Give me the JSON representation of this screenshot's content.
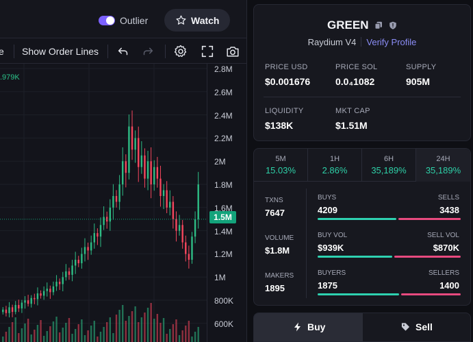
{
  "topbar": {
    "outlier_label": "Outlier",
    "outlier_on": true,
    "watch_label": "Watch"
  },
  "toolbar": {
    "cut_text": "e",
    "order_lines_label": "Show Order Lines",
    "icons": [
      "undo-icon",
      "redo-icon",
      "gear-icon",
      "fullscreen-icon",
      "camera-icon"
    ]
  },
  "chart": {
    "hover_readout": ".979K",
    "current_price_tag": "1.5M",
    "y_axis_ticks": [
      "2.8M",
      "2.6M",
      "2.4M",
      "2.2M",
      "2M",
      "1.8M",
      "1.6M",
      "1.4M",
      "1.2M",
      "1M",
      "800K",
      "600K"
    ],
    "up_color": "#2ebd85",
    "down_color": "#f6465d"
  },
  "chart_data": {
    "type": "candlestick",
    "y_unit": "market cap (USD)",
    "ylim": [
      600000,
      2800000
    ],
    "current": 1500000,
    "grid": true,
    "candles_close": [
      720000,
      690000,
      740000,
      700000,
      760000,
      730000,
      780000,
      800000,
      770000,
      820000,
      810000,
      860000,
      840000,
      880000,
      900000,
      870000,
      920000,
      960000,
      940000,
      1000000,
      1050000,
      1020000,
      1100000,
      1150000,
      1120000,
      1200000,
      1260000,
      1230000,
      1300000,
      1380000,
      1350000,
      1450000,
      1520000,
      1480000,
      1600000,
      1700000,
      1650000,
      1800000,
      2000000,
      1900000,
      2300000,
      2100000,
      2200000,
      1950000,
      2050000,
      1850000,
      2000000,
      1800000,
      1950000,
      1850000,
      1700000,
      1750000,
      1600000,
      1650000,
      1500000,
      1400000,
      1450000,
      1300000,
      1200000,
      1150000,
      1350000,
      1500000,
      1800000
    ]
  },
  "token": {
    "name": "GREEN",
    "dex": "Raydium V4",
    "verify_label": "Verify Profile",
    "stats": [
      {
        "label": "PRICE USD",
        "value": "$0.001676"
      },
      {
        "label": "PRICE SOL",
        "value": "0.0₄1082"
      },
      {
        "label": "SUPPLY",
        "value": "905M"
      },
      {
        "label": "LIQUIDITY",
        "value": "$138K"
      },
      {
        "label": "MKT CAP",
        "value": "$1.51M"
      }
    ]
  },
  "timeframes": [
    {
      "label": "5M",
      "change": "15.03%"
    },
    {
      "label": "1H",
      "change": "2.86%"
    },
    {
      "label": "6H",
      "change": "35,189%"
    },
    {
      "label": "24H",
      "change": "35,189%",
      "selected": true
    }
  ],
  "metrics": {
    "txns_label": "TXNS",
    "txns": "7647",
    "volume_label": "VOLUME",
    "volume": "$1.8M",
    "makers_label": "MAKERS",
    "makers": "1895",
    "buys_label": "BUYS",
    "buys": "4209",
    "sells_label": "SELLS",
    "sells": "3438",
    "buy_vol_label": "BUY VOL",
    "buy_vol": "$939K",
    "sell_vol_label": "SELL VOL",
    "sell_vol": "$870K",
    "buyers_label": "BUYERS",
    "buyers": "1875",
    "sellers_label": "SELLERS",
    "sellers": "1400",
    "buys_share": 0.55,
    "buy_vol_share": 0.52,
    "buyers_share": 0.57,
    "buy_color": "#2ed1b0",
    "sell_color": "#e84a7f"
  },
  "trade": {
    "buy_label": "Buy",
    "sell_label": "Sell",
    "selected": "buy"
  }
}
